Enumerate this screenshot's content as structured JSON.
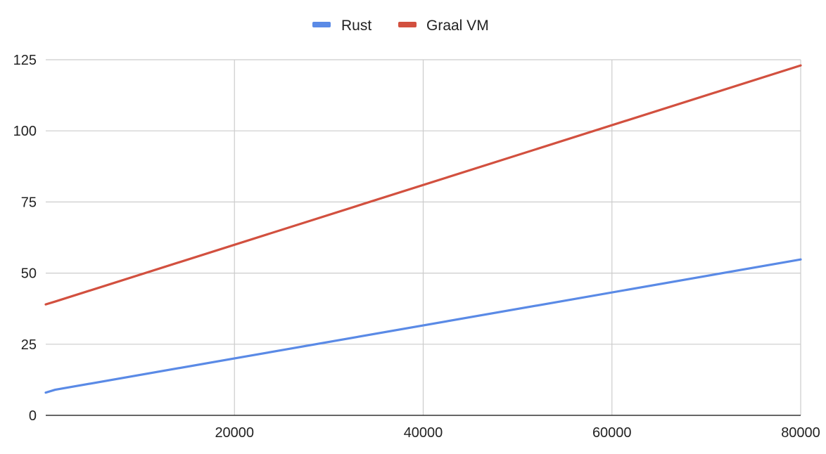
{
  "chart_data": {
    "type": "line",
    "title": "",
    "xlabel": "",
    "ylabel": "",
    "x": [
      0,
      1000,
      80000
    ],
    "xlim": [
      0,
      80000
    ],
    "ylim": [
      0,
      125
    ],
    "x_ticks": [
      "20000",
      "40000",
      "60000",
      "80000"
    ],
    "y_ticks": [
      "0",
      "25",
      "50",
      "75",
      "100",
      "125"
    ],
    "grid": true,
    "legend_position": "top-center",
    "series": [
      {
        "name": "Rust",
        "color": "#5a8ae6",
        "values": [
          8,
          9,
          54.8
        ]
      },
      {
        "name": "Graal VM",
        "color": "#d2503f",
        "values": [
          39,
          40,
          123
        ]
      }
    ]
  }
}
